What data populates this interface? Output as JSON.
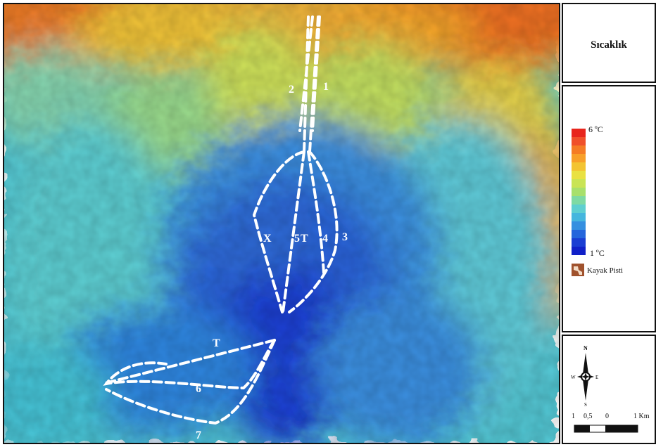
{
  "title": "Sıcaklık",
  "legend": {
    "max_label": "6 ºC",
    "min_label": "1 ºC",
    "ski_run_label": "Kayak Pisti",
    "colors": [
      "#e8251c",
      "#f0502a",
      "#f57c25",
      "#f8a02a",
      "#f3c433",
      "#e9e142",
      "#c9e455",
      "#a8e06c",
      "#7fdaa3",
      "#5fcfd0",
      "#45b6de",
      "#358fe0",
      "#2566dc",
      "#1a3ed3",
      "#1020c8"
    ],
    "ski_icon_color": "#a0522d"
  },
  "map": {
    "track_labels": [
      "1",
      "2",
      "3",
      "4",
      "5",
      "T",
      "X",
      "6",
      "7",
      "T"
    ]
  },
  "compass": {
    "north": "N",
    "south": "S",
    "east": "E",
    "west": "W",
    "scale_labels": [
      "1",
      "0,5",
      "0",
      "1 Km"
    ]
  }
}
